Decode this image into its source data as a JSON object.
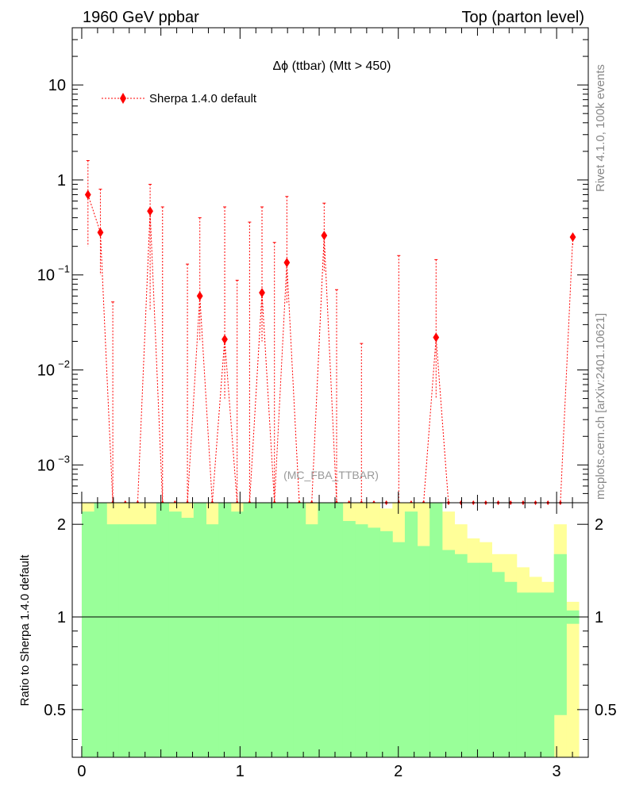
{
  "header": {
    "left": "1960 GeV ppbar",
    "right": "Top (parton level)"
  },
  "side": {
    "rivet": "Rivet 4.1.0,  100k events",
    "mcplots": "mcplots.cern.ch [arXiv:2401.10621]"
  },
  "chart_data": [
    {
      "type": "line",
      "title": "Δϕ (ttbar) (Mtt > 450)",
      "analysis_label": "(MC_FBA_TTBAR)",
      "y_scale": "log",
      "ylim": [
        0.0004,
        40
      ],
      "xlim": [
        -0.06,
        3.2
      ],
      "y_ticks": [
        {
          "v": 10,
          "label": "10"
        },
        {
          "v": 1,
          "label": "1"
        },
        {
          "v": 0.1,
          "label": "10",
          "sup": "−1"
        },
        {
          "v": 0.01,
          "label": "10",
          "sup": "−2"
        },
        {
          "v": 0.001,
          "label": "10",
          "sup": "−3"
        }
      ],
      "legend": {
        "entries": [
          "Sherpa 1.4.0 default"
        ],
        "position": "top-left"
      },
      "series": [
        {
          "name": "Sherpa 1.4.0 default",
          "color": "#ff0000",
          "x": [
            0.0393,
            0.1178,
            0.1963,
            0.2749,
            0.3534,
            0.432,
            0.5105,
            0.589,
            0.6676,
            0.7461,
            0.8247,
            0.9032,
            0.9817,
            1.0603,
            1.1388,
            1.2174,
            1.2959,
            1.3744,
            1.453,
            1.5315,
            1.6101,
            1.6886,
            1.7671,
            1.8457,
            1.9242,
            2.0028,
            2.0813,
            2.1598,
            2.2384,
            2.3169,
            2.3955,
            2.474,
            2.5525,
            2.6311,
            2.7096,
            2.7882,
            2.8667,
            2.9452,
            3.0238,
            3.1023
          ],
          "values": [
            0.7,
            0.28,
            0.0004,
            0.0004,
            0.0004,
            0.47,
            0.0004,
            0.0004,
            0.0004,
            0.06,
            0.0004,
            0.021,
            0.0004,
            0.0004,
            0.065,
            0.0004,
            0.135,
            0.0004,
            0.0004,
            0.26,
            0.0004,
            0.0004,
            0.0004,
            0.0004,
            0.0004,
            0.0004,
            0.0004,
            0.0004,
            0.022,
            0.0004,
            0.0004,
            0.0004,
            0.0004,
            0.0004,
            0.0004,
            0.0004,
            0.0004,
            0.0004,
            0.0004,
            0.25
          ],
          "err_up": [
            1.6,
            0.8,
            0.052,
            0.0004,
            0.0004,
            0.9,
            0.52,
            0.0004,
            0.13,
            0.4,
            0.0004,
            0.52,
            0.088,
            0.36,
            0.52,
            0.22,
            0.67,
            0.0004,
            0.0004,
            0.57,
            0.07,
            0.0004,
            0.019,
            0.0004,
            0.0004,
            0.16,
            0.0004,
            0.0004,
            0.145,
            0.0004,
            0.0004,
            0.0004,
            0.0004,
            0.0004,
            0.0004,
            0.0004,
            0.0004,
            0.0004,
            0.0004,
            0.25
          ],
          "err_down": [
            0.2,
            0.1,
            0.0004,
            0.0004,
            0.0004,
            0.043,
            0.0004,
            0.0004,
            0.0004,
            0.02,
            0.0004,
            0.005,
            0.0004,
            0.0004,
            0.02,
            0.0004,
            0.05,
            0.0004,
            0.0004,
            0.11,
            0.0004,
            0.0004,
            0.0004,
            0.0004,
            0.0004,
            0.0004,
            0.0004,
            0.0004,
            0.005,
            0.0004,
            0.0004,
            0.0004,
            0.0004,
            0.0004,
            0.0004,
            0.0004,
            0.0004,
            0.0004,
            0.0004,
            0.2
          ]
        }
      ]
    },
    {
      "type": "area",
      "ylabel": "Ratio to Sherpa 1.4.0 default",
      "y_scale": "log",
      "ylim": [
        0.35,
        2.35
      ],
      "xlim": [
        -0.06,
        3.2
      ],
      "x_ticks": [
        {
          "v": 0,
          "label": "0"
        },
        {
          "v": 1,
          "label": "1"
        },
        {
          "v": 2,
          "label": "2"
        },
        {
          "v": 3,
          "label": "3"
        }
      ],
      "y_ticks": [
        {
          "v": 2,
          "label": "2"
        },
        {
          "v": 1,
          "label": "1"
        },
        {
          "v": 0.5,
          "label": "0.5"
        }
      ],
      "reference_line": 1,
      "bin_edges_start": 0,
      "bin_width": 0.0785,
      "green_band_upper": [
        2.2,
        2.35,
        2.0,
        2.0,
        2.0,
        2.0,
        2.35,
        2.2,
        2.1,
        2.35,
        2.0,
        2.35,
        2.2,
        2.35,
        2.35,
        2.35,
        2.35,
        2.35,
        2.0,
        2.35,
        2.35,
        2.05,
        2.0,
        1.95,
        1.9,
        1.75,
        2.2,
        1.7,
        2.35,
        1.65,
        1.6,
        1.5,
        1.5,
        1.4,
        1.3,
        1.2,
        1.2,
        1.2,
        1.6,
        1.05
      ],
      "green_band_lower": [
        0.35,
        0.35,
        0.35,
        0.35,
        0.35,
        0.35,
        0.35,
        0.35,
        0.35,
        0.35,
        0.35,
        0.35,
        0.35,
        0.35,
        0.35,
        0.35,
        0.35,
        0.35,
        0.35,
        0.35,
        0.35,
        0.35,
        0.35,
        0.35,
        0.35,
        0.35,
        0.35,
        0.35,
        0.35,
        0.35,
        0.35,
        0.35,
        0.35,
        0.35,
        0.35,
        0.35,
        0.35,
        0.35,
        0.48,
        0.95
      ],
      "yellow_band_upper": [
        2.35,
        2.35,
        2.35,
        2.35,
        2.35,
        2.35,
        2.35,
        2.35,
        2.35,
        2.35,
        2.35,
        2.35,
        2.35,
        2.35,
        2.35,
        2.35,
        2.35,
        2.35,
        2.35,
        2.35,
        2.35,
        2.35,
        2.35,
        2.35,
        2.25,
        2.35,
        2.35,
        2.35,
        2.35,
        2.2,
        2.0,
        1.8,
        1.75,
        1.6,
        1.6,
        1.45,
        1.35,
        1.3,
        2.0,
        1.12
      ],
      "yellow_band_lower": [
        0.35,
        0.35,
        0.35,
        0.35,
        0.35,
        0.35,
        0.35,
        0.35,
        0.35,
        0.35,
        0.35,
        0.35,
        0.35,
        0.35,
        0.35,
        0.35,
        0.35,
        0.35,
        0.35,
        0.35,
        0.35,
        0.35,
        0.35,
        0.35,
        0.35,
        0.35,
        0.35,
        0.35,
        0.35,
        0.35,
        0.35,
        0.35,
        0.35,
        0.35,
        0.35,
        0.35,
        0.35,
        0.35,
        0.35,
        0.35
      ],
      "colors": {
        "green": "#99ff99",
        "yellow": "#ffff99"
      }
    }
  ]
}
